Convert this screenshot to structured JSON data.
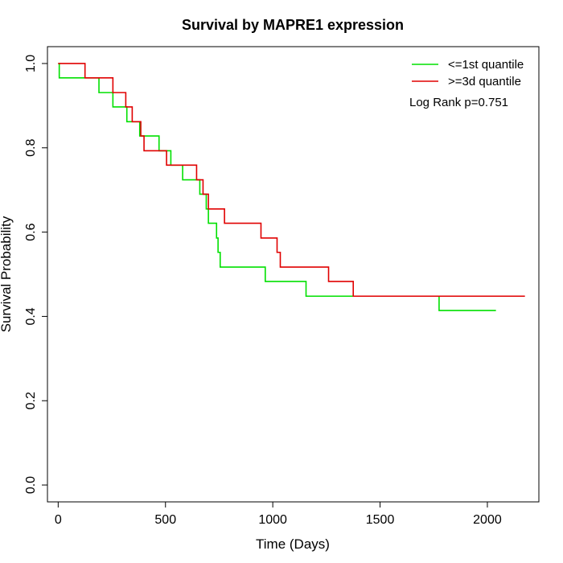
{
  "chart_data": {
    "type": "line",
    "title": "Survival by MAPRE1 expression",
    "xlabel": "Time (Days)",
    "ylabel": "Survival Probability",
    "xlim": [
      -50,
      2240
    ],
    "ylim": [
      -0.04,
      1.04
    ],
    "x_ticks": [
      0,
      500,
      1000,
      1500,
      2000
    ],
    "y_ticks": [
      0.0,
      0.2,
      0.4,
      0.6,
      0.8,
      1.0
    ],
    "x_tick_labels": [
      "0",
      "500",
      "1000",
      "1500",
      "2000"
    ],
    "y_tick_labels": [
      "0.0",
      "0.2",
      "0.4",
      "0.6",
      "0.8",
      "1.0"
    ],
    "grid": false,
    "legend_position": "top-right",
    "annotation": "Log Rank p=0.751",
    "series": [
      {
        "name": "<=1st quantile",
        "color": "#00e000",
        "step": true,
        "points": [
          [
            0,
            1.0
          ],
          [
            5,
            0.966
          ],
          [
            190,
            0.931
          ],
          [
            255,
            0.897
          ],
          [
            320,
            0.862
          ],
          [
            380,
            0.828
          ],
          [
            470,
            0.793
          ],
          [
            525,
            0.759
          ],
          [
            580,
            0.724
          ],
          [
            660,
            0.69
          ],
          [
            690,
            0.655
          ],
          [
            700,
            0.621
          ],
          [
            738,
            0.586
          ],
          [
            745,
            0.552
          ],
          [
            755,
            0.517
          ],
          [
            965,
            0.483
          ],
          [
            1155,
            0.448
          ],
          [
            1775,
            0.414
          ],
          [
            2040,
            0.414
          ]
        ]
      },
      {
        "name": ">=3d quantile",
        "color": "#e00000",
        "step": true,
        "points": [
          [
            0,
            1.0
          ],
          [
            125,
            0.966
          ],
          [
            255,
            0.931
          ],
          [
            315,
            0.897
          ],
          [
            345,
            0.862
          ],
          [
            385,
            0.828
          ],
          [
            400,
            0.793
          ],
          [
            505,
            0.759
          ],
          [
            645,
            0.724
          ],
          [
            675,
            0.69
          ],
          [
            700,
            0.655
          ],
          [
            775,
            0.621
          ],
          [
            945,
            0.586
          ],
          [
            1020,
            0.552
          ],
          [
            1035,
            0.517
          ],
          [
            1260,
            0.483
          ],
          [
            1375,
            0.448
          ],
          [
            2175,
            0.448
          ]
        ]
      }
    ]
  }
}
